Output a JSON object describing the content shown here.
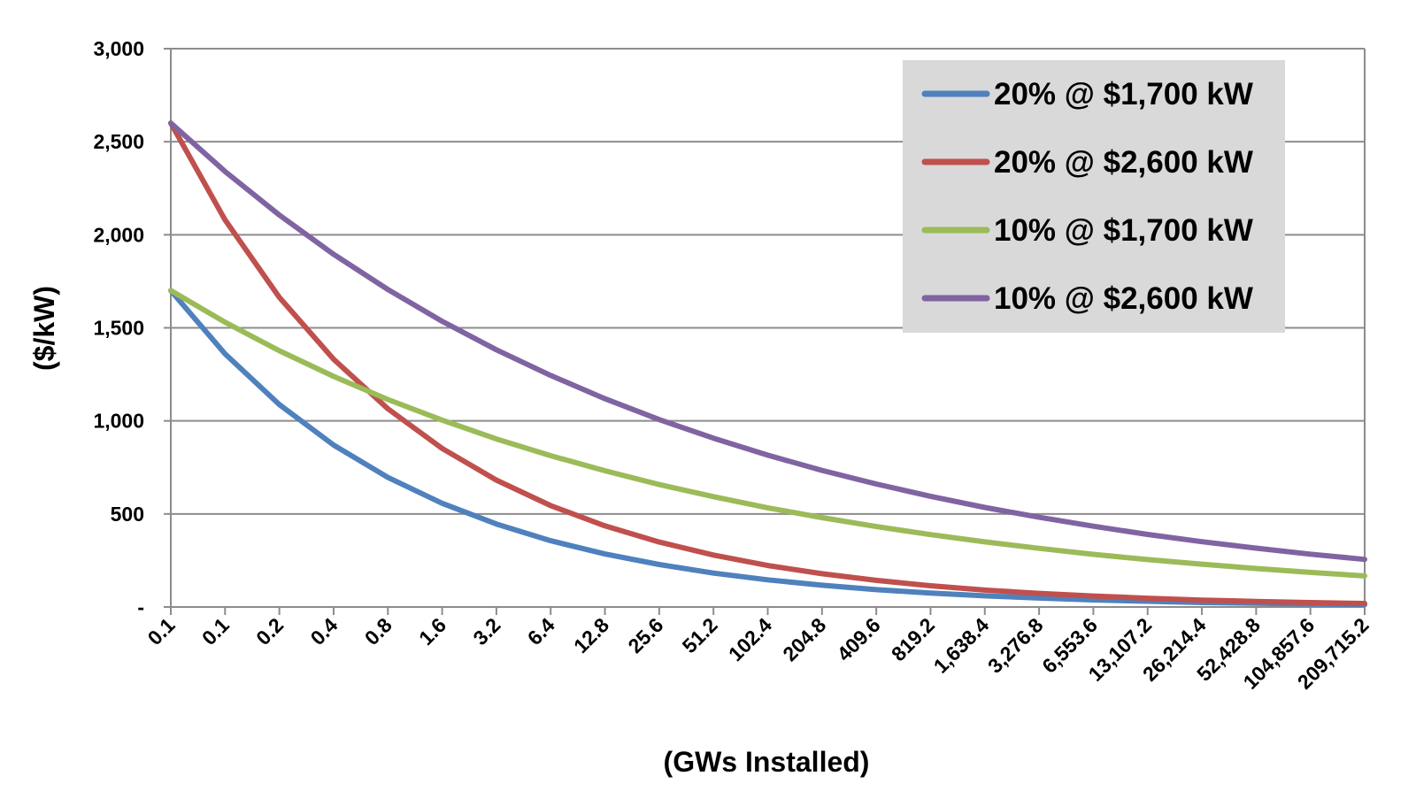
{
  "chart_data": {
    "type": "line",
    "xlabel": "(GWs Installed)",
    "ylabel": "($/kW)",
    "x_tick_labels": [
      "0.1",
      "0.1",
      "0.2",
      "0.4",
      "0.8",
      "1.6",
      "3.2",
      "6.4",
      "12.8",
      "25.6",
      "51.2",
      "102.4",
      "204.8",
      "409.6",
      "819.2",
      "1,638.4",
      "3,276.8",
      "6,553.6",
      "13,107.2",
      "26,214.4",
      "52,428.8",
      "104,857.6",
      "209,715.2"
    ],
    "y_tick_labels": [
      "-",
      "500",
      "1,000",
      "1,500",
      "2,000",
      "2,500",
      "3,000"
    ],
    "y_ticks": [
      0,
      500,
      1000,
      1500,
      2000,
      2500,
      3000
    ],
    "ylim": [
      0,
      3000
    ],
    "grid": true,
    "legend_position": "top-right",
    "series": [
      {
        "name": "20% @ $1,700 kW",
        "color": "#4F81BD",
        "values": [
          1700,
          1360,
          1088,
          870,
          696,
          557,
          446,
          356,
          285,
          228,
          182,
          146,
          117,
          93,
          75,
          60,
          48,
          38,
          31,
          24,
          20,
          16,
          13
        ]
      },
      {
        "name": "20% @ $2,600 kW",
        "color": "#C0504D",
        "values": [
          2600,
          2080,
          1664,
          1331,
          1065,
          852,
          682,
          545,
          436,
          349,
          279,
          223,
          179,
          143,
          114,
          91,
          73,
          59,
          47,
          37,
          30,
          24,
          19
        ]
      },
      {
        "name": "10% @ $1,700 kW",
        "color": "#9BBB59",
        "values": [
          1700,
          1530,
          1377,
          1239,
          1115,
          1004,
          903,
          813,
          732,
          658,
          593,
          533,
          480,
          432,
          389,
          350,
          315,
          283,
          255,
          230,
          207,
          186,
          167
        ]
      },
      {
        "name": "10% @ $2,600 kW",
        "color": "#8064A2",
        "values": [
          2600,
          2340,
          2106,
          1895,
          1706,
          1535,
          1382,
          1244,
          1119,
          1007,
          907,
          816,
          734,
          661,
          595,
          535,
          482,
          434,
          390,
          351,
          316,
          284,
          256
        ]
      }
    ]
  }
}
